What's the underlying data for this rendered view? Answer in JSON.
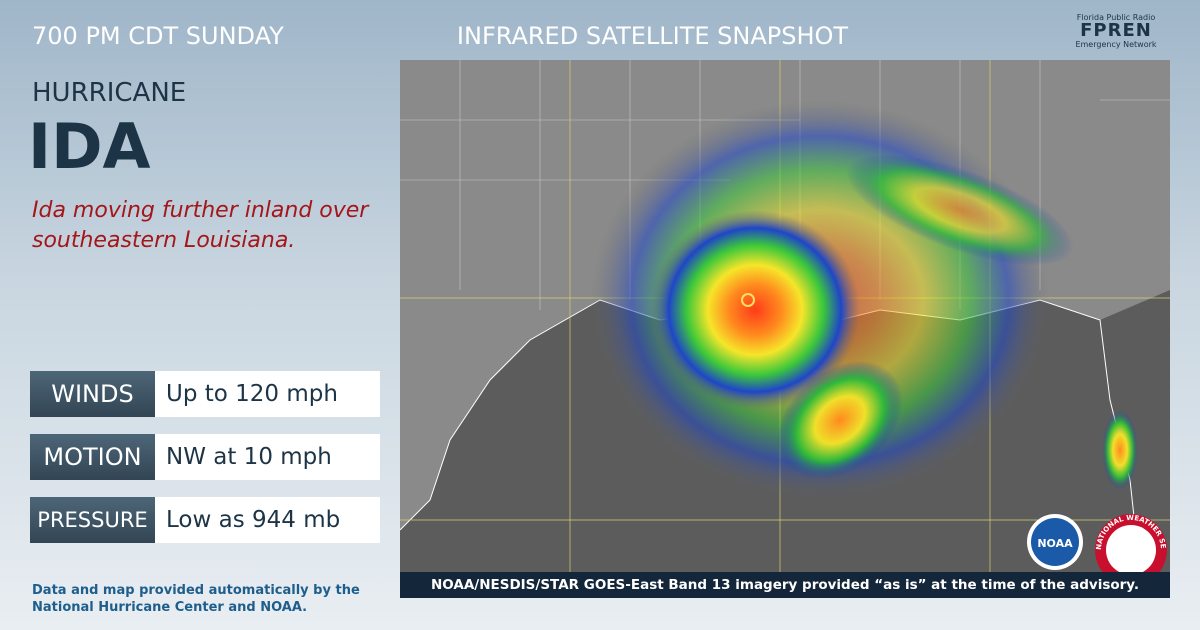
{
  "header": {
    "time": "700 PM CDT SUNDAY",
    "title": "INFRARED SATELLITE SNAPSHOT"
  },
  "brand": {
    "line1": "Florida Public Radio",
    "name": "FPREN",
    "line2": "Emergency Network"
  },
  "storm": {
    "type": "HURRICANE",
    "name": "IDA",
    "headline": "Ida moving further inland over southeastern Louisiana."
  },
  "stats": [
    {
      "label": "WINDS",
      "value": "Up to 120 mph"
    },
    {
      "label": "MOTION",
      "value": "NW at 10 mph"
    },
    {
      "label": "PRESSURE",
      "value": "Low as 944 mb"
    }
  ],
  "credit": "Data and map provided automatically by the National Hurricane Center and NOAA.",
  "image": {
    "caption": "NOAA/NESDIS/STAR GOES-East Band 13 imagery provided “as is” at the time of the advisory.",
    "logos": [
      "NOAA",
      "NATIONAL WEATHER SERVICE"
    ]
  }
}
